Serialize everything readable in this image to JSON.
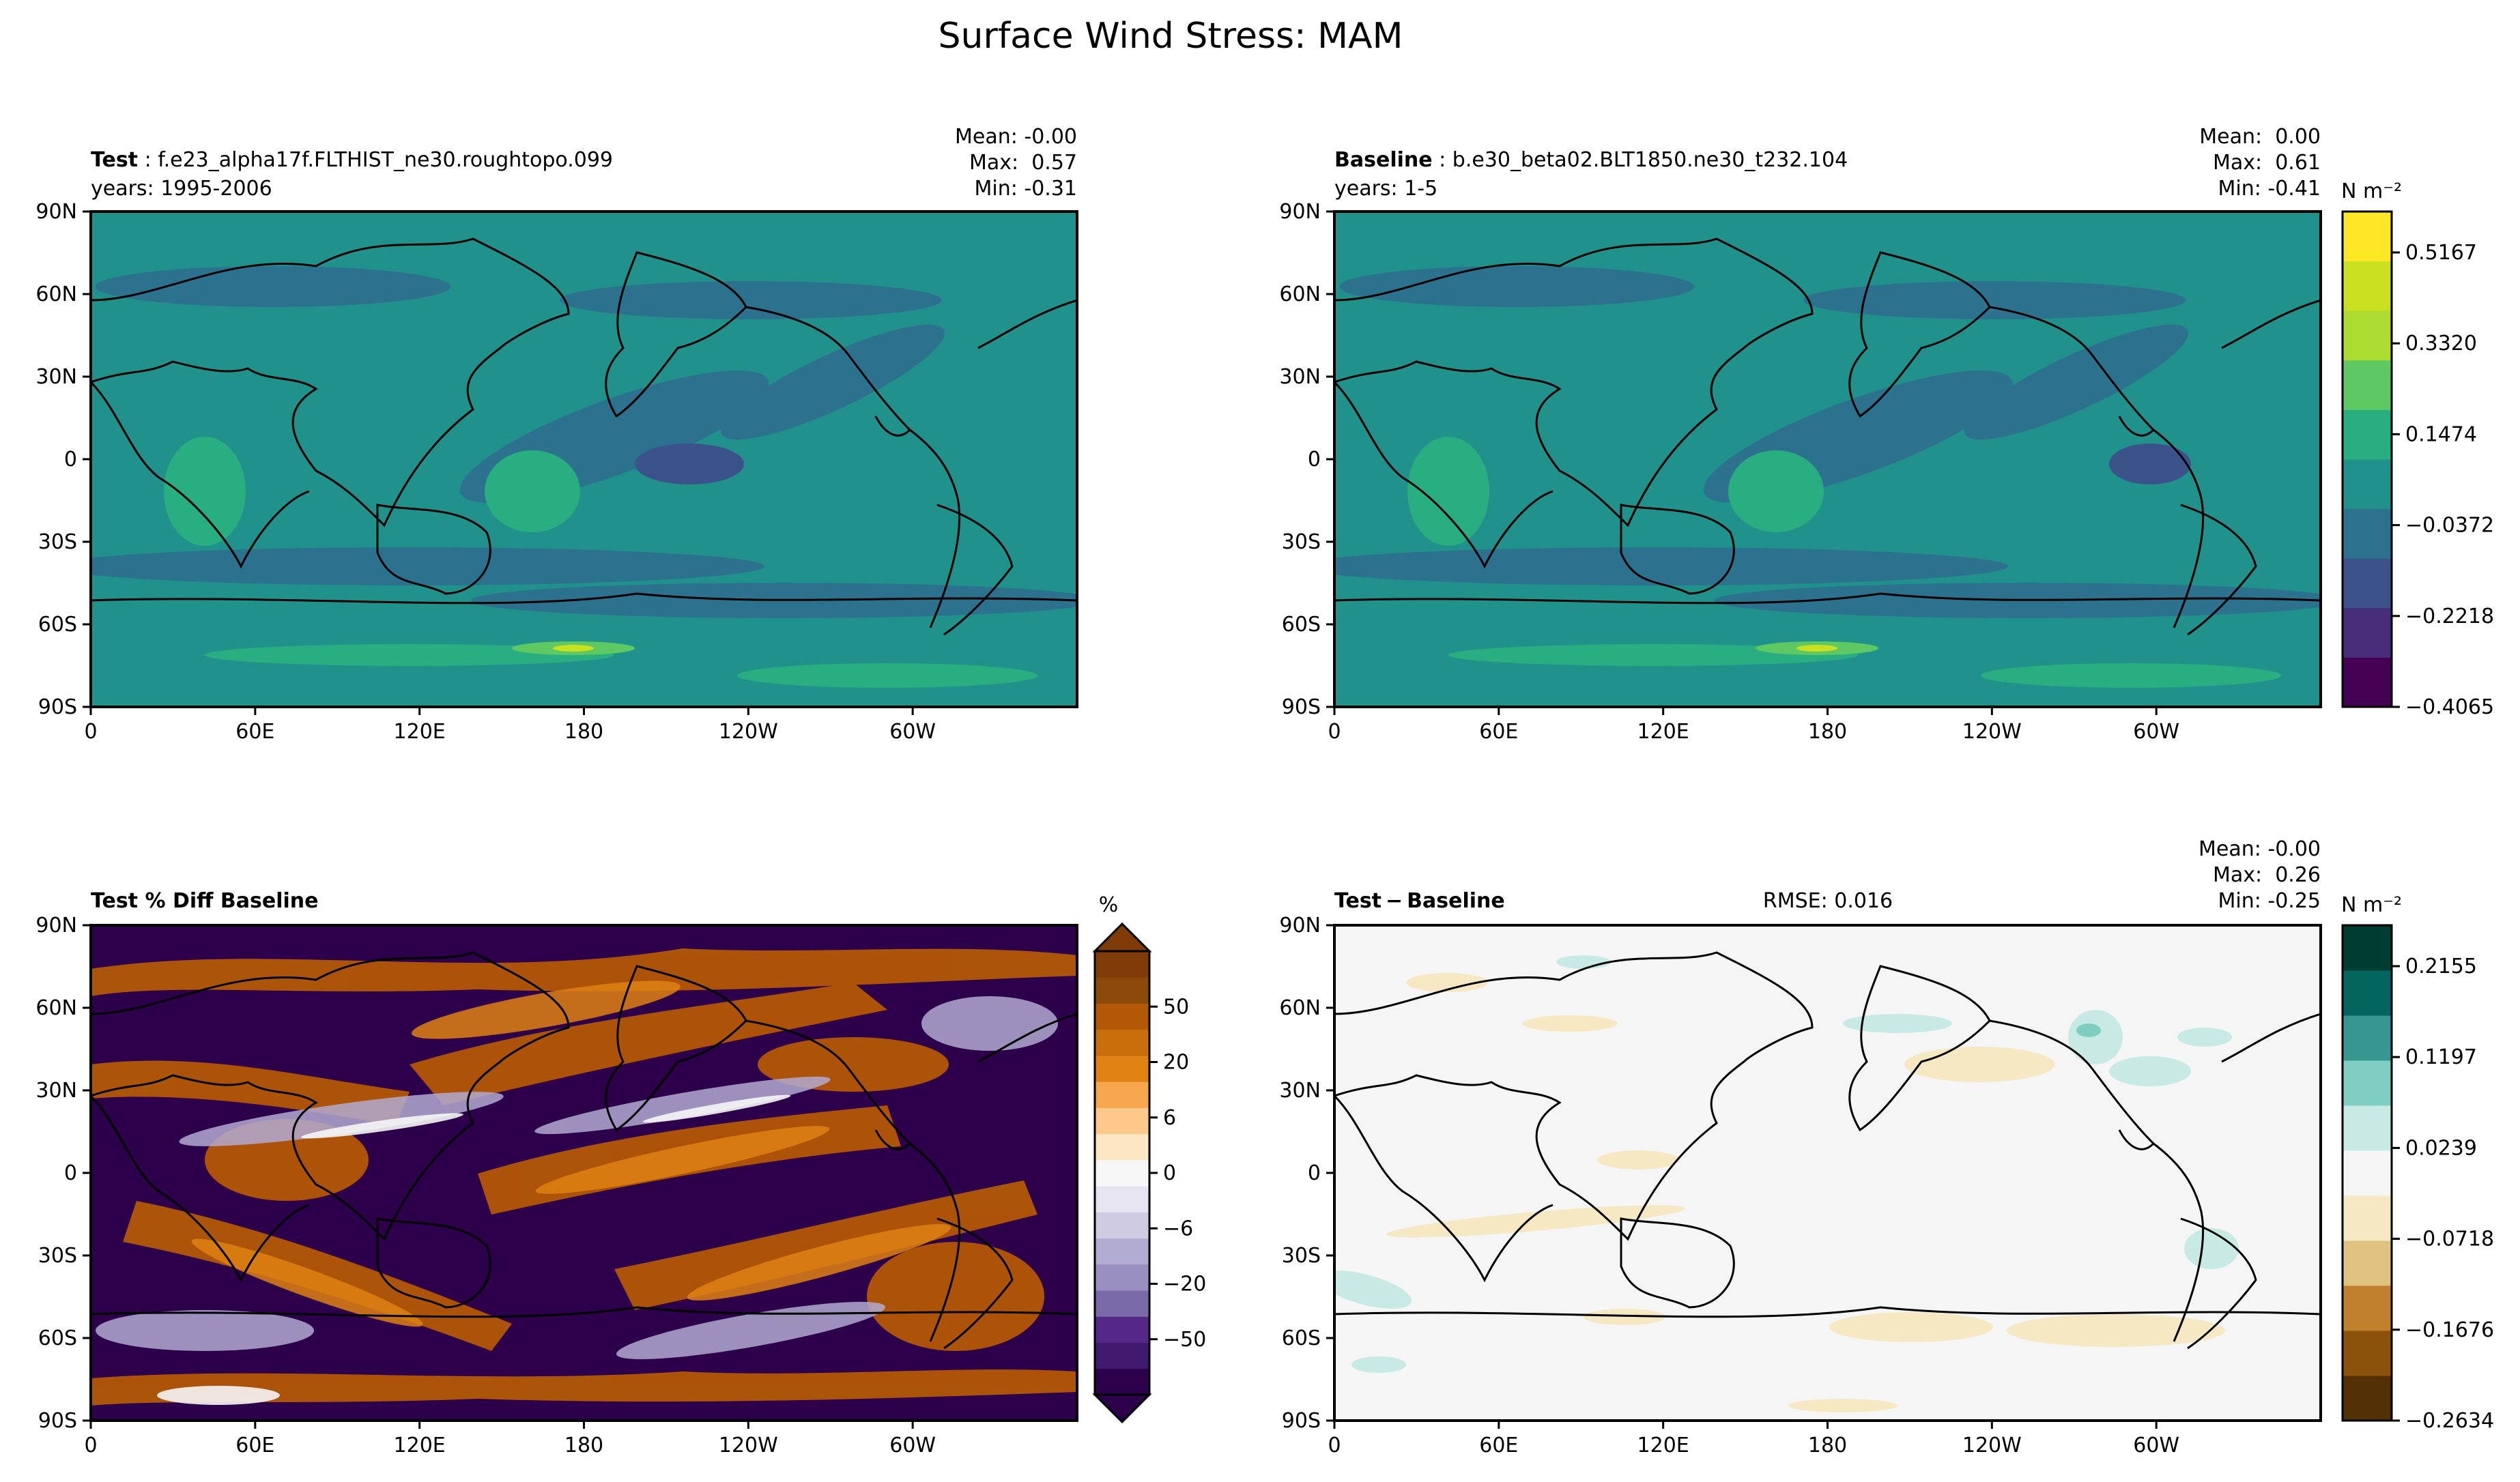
{
  "figure": {
    "title": "Surface Wind Stress: MAM"
  },
  "axes": {
    "x_ticks": [
      "0",
      "60E",
      "120E",
      "180",
      "120W",
      "60W"
    ],
    "y_ticks": [
      "90N",
      "60N",
      "30N",
      "0",
      "30S",
      "60S",
      "90S"
    ]
  },
  "panels": {
    "test": {
      "label_bold": "Test",
      "case": "f.e23_alpha17f.FLTHIST_ne30.roughtopo.099",
      "years": "years: 1995-2006",
      "mean": "Mean: -0.00",
      "max": "Max:  0.57",
      "min": "Min: -0.31"
    },
    "baseline": {
      "label_bold": "Baseline",
      "case": "b.e30_beta02.BLT1850.ne30_t232.104",
      "years": "years: 1-5",
      "mean": "Mean:  0.00",
      "max": "Max:  0.61",
      "min": "Min: -0.41"
    },
    "pctdiff": {
      "label_bold": "Test % Diff Baseline"
    },
    "diff": {
      "label_bold": "Test − Baseline",
      "rmse": "RMSE: 0.016",
      "mean": "Mean: -0.00",
      "max": "Max:  0.26",
      "min": "Min: -0.25"
    }
  },
  "colorbars": {
    "top": {
      "unit": "N m⁻²",
      "ticks": [
        "0.5167",
        "0.3320",
        "0.1474",
        "−0.0372",
        "−0.2218",
        "−0.4065"
      ],
      "colors": [
        "#440154",
        "#472d7b",
        "#3b528b",
        "#2c728e",
        "#21918c",
        "#28ae80",
        "#5ec962",
        "#addc30",
        "#c8e020",
        "#fde725"
      ]
    },
    "pct": {
      "unit": "%",
      "ticks": [
        "50",
        "20",
        "6",
        "0",
        "−6",
        "−20",
        "−50"
      ],
      "colors": [
        "#2d004b",
        "#3f1a6e",
        "#542788",
        "#7a6ba8",
        "#9a8fc0",
        "#b2abd2",
        "#cfcbe3",
        "#e6e4f0",
        "#f7f7f7",
        "#fde6c4",
        "#fdc98a",
        "#f6a64d",
        "#e08214",
        "#c96e0c",
        "#b35806",
        "#8c4a0a",
        "#7f3b08"
      ]
    },
    "diff": {
      "unit": "N m⁻²",
      "ticks": [
        "0.2155",
        "0.1197",
        "0.0239",
        "−0.0718",
        "−0.1676",
        "−0.2634"
      ],
      "colors": [
        "#543005",
        "#8c510a",
        "#bf812d",
        "#dfc27d",
        "#f6e8c3",
        "#f5f5f5",
        "#c7eae5",
        "#80cdc1",
        "#35978f",
        "#01665e",
        "#003c30"
      ]
    }
  }
}
